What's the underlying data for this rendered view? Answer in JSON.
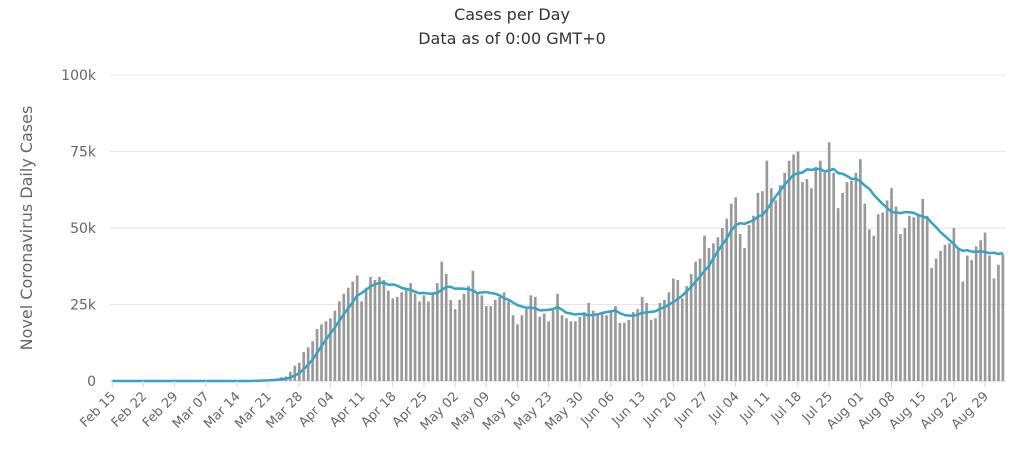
{
  "chart_data": {
    "type": "bar",
    "title": "Cases per Day",
    "subtitle": "Data as of 0:00 GMT+0",
    "ylabel": "Novel Coronavirus Daily Cases",
    "xlabel": "",
    "ylim": [
      0,
      100000
    ],
    "yticks": [
      0,
      25000,
      50000,
      75000,
      100000
    ],
    "ytick_labels": [
      "0",
      "25k",
      "50k",
      "75k",
      "100k"
    ],
    "grid": "horizontal",
    "x_tick_labels": [
      "Feb 15",
      "Feb 22",
      "Feb 29",
      "Mar 07",
      "Mar 14",
      "Mar 21",
      "Mar 28",
      "Apr 04",
      "Apr 11",
      "Apr 18",
      "Apr 25",
      "May 02",
      "May 09",
      "May 16",
      "May 23",
      "May 30",
      "Jun 06",
      "Jun 13",
      "Jun 20",
      "Jun 27",
      "Jul 04",
      "Jul 11",
      "Jul 18",
      "Jul 25",
      "Aug 01",
      "Aug 08",
      "Aug 15",
      "Aug 22",
      "Aug 29"
    ],
    "x_start": "Feb 15",
    "colors": {
      "bars": "#999999",
      "line": "#33a3c7",
      "grid": "#e6e6e6"
    },
    "series": [
      {
        "chart_type": "bar",
        "values": [
          0,
          0,
          0,
          0,
          0,
          0,
          0,
          0,
          0,
          0,
          0,
          0,
          0,
          0,
          0,
          0,
          0,
          0,
          0,
          0,
          0,
          0,
          0,
          0,
          0,
          0,
          0,
          0,
          0,
          0,
          0,
          0,
          300,
          300,
          400,
          400,
          600,
          800,
          1200,
          1500,
          3000,
          5000,
          6000,
          9500,
          11000,
          13000,
          17000,
          18500,
          19500,
          20500,
          23000,
          26000,
          28500,
          30500,
          32500,
          34500,
          26000,
          30500,
          34000,
          33000,
          34000,
          33000,
          29500,
          27000,
          27500,
          29000,
          30500,
          32000,
          28500,
          26000,
          28000,
          26000,
          29000,
          32000,
          39000,
          35000,
          26500,
          23500,
          26500,
          28500,
          31000,
          36000,
          29000,
          28000,
          24500,
          24500,
          26500,
          27500,
          29000,
          26000,
          21500,
          18500,
          21500,
          23500,
          28000,
          27500,
          21000,
          22000,
          19500,
          23000,
          28500,
          21500,
          20500,
          19500,
          19500,
          21000,
          22500,
          25500,
          23000,
          21500,
          22500,
          21500,
          23000,
          24500,
          19000,
          19000,
          20000,
          22500,
          23500,
          27500,
          25500,
          20000,
          20500,
          25500,
          26500,
          29000,
          33500,
          33000,
          27000,
          31000,
          35000,
          39000,
          40000,
          47500,
          43500,
          45000,
          47000,
          50000,
          53000,
          58000,
          60000,
          48000,
          43500,
          51000,
          54000,
          61500,
          62000,
          72000,
          63000,
          59000,
          64000,
          68000,
          72000,
          74000,
          75000,
          65000,
          66000,
          63000,
          70000,
          72000,
          68000,
          78000,
          68000,
          56500,
          61500,
          65000,
          65500,
          68000,
          72500,
          58000,
          49500,
          47500,
          54500,
          55000,
          59000,
          63000,
          57000,
          48000,
          50000,
          54000,
          53500,
          54000,
          59500,
          54000,
          37000,
          40000,
          42500,
          44500,
          45000,
          50000,
          43500,
          32500,
          41000,
          39500,
          44000,
          46000,
          48500,
          41000,
          33500,
          38000,
          41500
        ]
      },
      {
        "chart_type": "line",
        "smoothing": "7-day moving average"
      }
    ]
  }
}
